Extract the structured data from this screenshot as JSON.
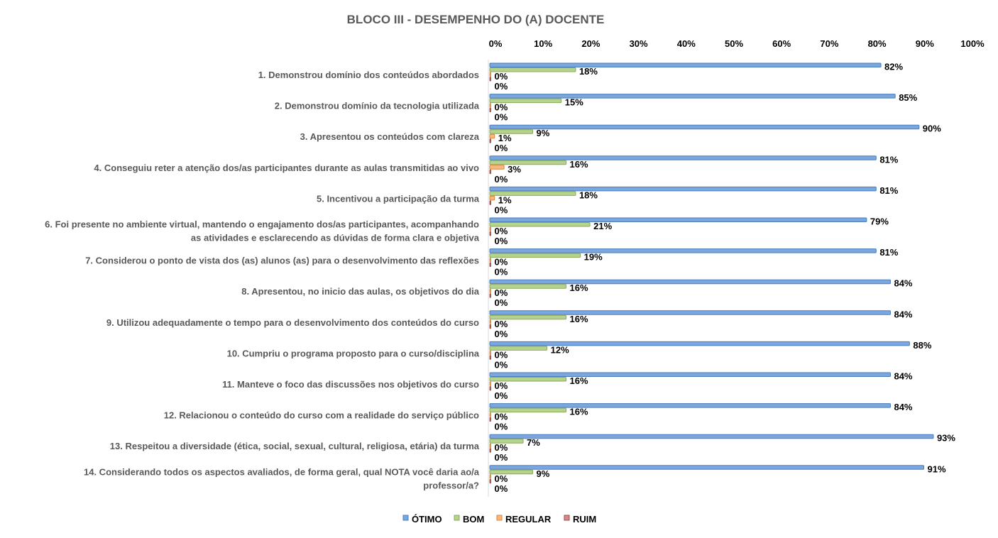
{
  "chart_data": {
    "type": "bar",
    "orientation": "horizontal",
    "title": "BLOCO III - DESEMPENHO DO (A) DOCENTE",
    "xlim": [
      0,
      100
    ],
    "x_ticks": [
      "0%",
      "10%",
      "20%",
      "30%",
      "40%",
      "50%",
      "60%",
      "70%",
      "80%",
      "90%",
      "100%"
    ],
    "x_tick_values": [
      0,
      10,
      20,
      30,
      40,
      50,
      60,
      70,
      80,
      90,
      100
    ],
    "axis_position": "top",
    "legend_position": "bottom",
    "grid": false,
    "categories": [
      [
        "1. Demonstrou domínio dos conteúdos abordados"
      ],
      [
        "2. Demonstrou domínio da tecnologia utilizada"
      ],
      [
        "3. Apresentou os conteúdos com clareza"
      ],
      [
        "4. Conseguiu reter a atenção dos/as participantes durante as aulas transmitidas ao vivo"
      ],
      [
        "5. Incentivou a participação da turma"
      ],
      [
        "6. Foi presente no ambiente virtual, mantendo o engajamento dos/as participantes, acompanhando",
        "as atividades e esclarecendo as dúvidas de forma clara e objetiva"
      ],
      [
        "7. Considerou o ponto de vista dos (as) alunos (as) para o desenvolvimento das reflexões"
      ],
      [
        "8. Apresentou, no inicio das aulas, os objetivos do dia"
      ],
      [
        "9. Utilizou adequadamente o tempo para o desenvolvimento dos conteúdos do curso"
      ],
      [
        "10. Cumpriu o programa proposto para o curso/disciplina"
      ],
      [
        "11. Manteve o foco das discussões nos objetivos do curso"
      ],
      [
        "12. Relacionou o conteúdo do curso com a realidade do serviço público"
      ],
      [
        "13. Respeitou a diversidade (ética, social, sexual, cultural, religiosa, etária) da turma"
      ],
      [
        "14. Considerando todos os aspectos avaliados, de forma geral, qual NOTA você daria ao/a",
        "professor/a?"
      ]
    ],
    "series": [
      {
        "name": "ÓTIMO",
        "color": "#7BA6DE",
        "border": "#4A7EBB",
        "values": [
          82,
          85,
          90,
          81,
          81,
          79,
          81,
          84,
          84,
          88,
          84,
          84,
          93,
          91
        ]
      },
      {
        "name": "BOM",
        "color": "#B5D38C",
        "border": "#8AA85E",
        "values": [
          18,
          15,
          9,
          16,
          18,
          21,
          19,
          16,
          16,
          12,
          16,
          16,
          7,
          9
        ]
      },
      {
        "name": "REGULAR",
        "color": "#F9B97C",
        "border": "#D9863E",
        "values": [
          0,
          0,
          1,
          3,
          1,
          0,
          0,
          0,
          0,
          0,
          0,
          0,
          0,
          0
        ]
      },
      {
        "name": "RUIM",
        "color": "#D38A88",
        "border": "#A04A48",
        "values": [
          0,
          0,
          0,
          0,
          0,
          0,
          0,
          0,
          0,
          0,
          0,
          0,
          0,
          0
        ]
      }
    ],
    "value_suffix": "%"
  }
}
